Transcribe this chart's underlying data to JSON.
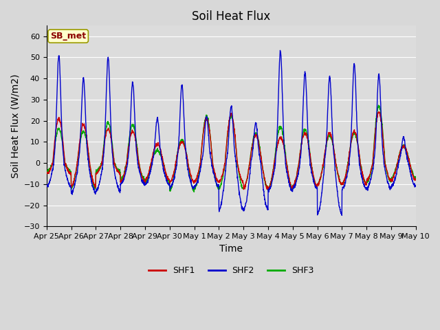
{
  "title": "Soil Heat Flux",
  "xlabel": "Time",
  "ylabel": "Soil Heat Flux (W/m2)",
  "ylim": [
    -30,
    65
  ],
  "yticks": [
    -30,
    -20,
    -10,
    0,
    10,
    20,
    30,
    40,
    50,
    60
  ],
  "xtick_labels": [
    "Apr 25",
    "Apr 26",
    "Apr 27",
    "Apr 28",
    "Apr 29",
    "Apr 30",
    "May 1",
    "May 2",
    "May 3",
    "May 4",
    "May 5",
    "May 6",
    "May 7",
    "May 8",
    "May 9",
    "May 10"
  ],
  "shf1_color": "#cc0000",
  "shf2_color": "#0000cc",
  "shf3_color": "#00aa00",
  "legend_label": "SB_met",
  "plot_bg_color": "#dcdcdc",
  "grid_color": "#ffffff",
  "title_fontsize": 12,
  "axis_fontsize": 10,
  "tick_fontsize": 8,
  "legend_fontsize": 9,
  "shf1_day_peaks": [
    21,
    18,
    16,
    15,
    9,
    10,
    21,
    23,
    13,
    12,
    14,
    14,
    15,
    24,
    8
  ],
  "shf2_day_peaks": [
    51,
    40,
    50,
    38,
    21,
    37,
    22,
    27,
    19,
    53,
    43,
    41,
    47,
    42,
    12
  ],
  "shf3_day_peaks": [
    16,
    15,
    19,
    18,
    6,
    11,
    22,
    22,
    14,
    17,
    16,
    13,
    14,
    27,
    8
  ],
  "shf1_night_troughs": [
    -5,
    -11,
    -5,
    -9,
    -8,
    -9,
    -9,
    -9,
    -12,
    -12,
    -11,
    -10,
    -10,
    -8,
    -8
  ],
  "shf2_night_troughs": [
    -11,
    -14,
    -13,
    -10,
    -10,
    -12,
    -11,
    -22,
    -22,
    -13,
    -12,
    -24,
    -12,
    -12,
    -11
  ],
  "shf3_night_troughs": [
    -4,
    -12,
    -4,
    -8,
    -9,
    -13,
    -12,
    -12,
    -12,
    -12,
    -11,
    -10,
    -10,
    -9,
    -7
  ]
}
